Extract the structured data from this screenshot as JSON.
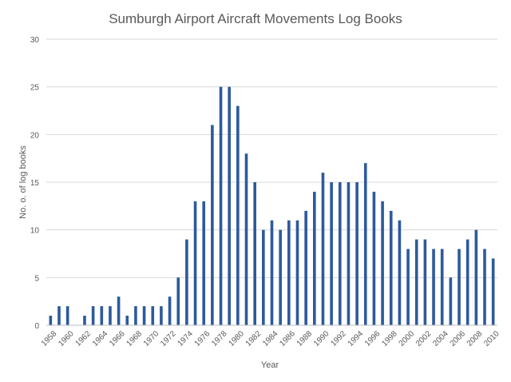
{
  "chart_data": {
    "type": "bar",
    "title": "Sumburgh Airport Aircraft Movements Log Books",
    "xlabel": "Year",
    "ylabel": "No. o. of log books",
    "ylim": [
      0,
      30
    ],
    "yticks": [
      0,
      5,
      10,
      15,
      20,
      25,
      30
    ],
    "grid": true,
    "legend": "none",
    "bar_color": "#2e5a9c",
    "grid_color": "#d9d9d9",
    "categories": [
      1958,
      1959,
      1960,
      1961,
      1962,
      1963,
      1964,
      1965,
      1966,
      1967,
      1968,
      1969,
      1970,
      1971,
      1972,
      1973,
      1974,
      1975,
      1976,
      1977,
      1978,
      1979,
      1980,
      1981,
      1982,
      1983,
      1984,
      1985,
      1986,
      1987,
      1988,
      1989,
      1990,
      1991,
      1992,
      1993,
      1994,
      1995,
      1996,
      1997,
      1998,
      1999,
      2000,
      2001,
      2002,
      2003,
      2004,
      2005,
      2006,
      2007,
      2008,
      2009,
      2010
    ],
    "xtick_labels": [
      "1958",
      "1960",
      "1962",
      "1964",
      "1966",
      "1968",
      "1970",
      "1972",
      "1974",
      "1976",
      "1978",
      "1980",
      "1982",
      "1984",
      "1986",
      "1988",
      "1990",
      "1992",
      "1994",
      "1996",
      "1998",
      "2000",
      "2002",
      "2004",
      "2006",
      "2008",
      "2010"
    ],
    "values": [
      1,
      2,
      2,
      0,
      1,
      2,
      2,
      2,
      3,
      1,
      2,
      2,
      2,
      2,
      3,
      5,
      9,
      13,
      13,
      21,
      25,
      25,
      23,
      18,
      15,
      10,
      11,
      10,
      11,
      11,
      12,
      14,
      16,
      15,
      15,
      15,
      15,
      17,
      14,
      13,
      12,
      11,
      8,
      9,
      9,
      8,
      8,
      5,
      8,
      9,
      10,
      8,
      7
    ]
  }
}
